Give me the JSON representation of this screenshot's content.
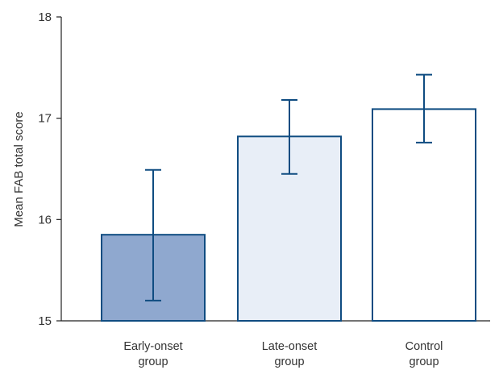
{
  "chart_data": {
    "type": "bar",
    "ylabel": "Mean FAB total score",
    "ylim": [
      15,
      18
    ],
    "yticks": [
      15,
      16,
      17,
      18
    ],
    "grid": false,
    "categories": [
      {
        "label_lines": [
          "Early-onset",
          "group"
        ],
        "value": 15.85,
        "err_low": 15.2,
        "err_high": 16.49,
        "fill": "#8fa8cf"
      },
      {
        "label_lines": [
          "Late-onset",
          "group"
        ],
        "value": 16.82,
        "err_low": 16.45,
        "err_high": 17.18,
        "fill": "#e8eef7"
      },
      {
        "label_lines": [
          "Control",
          "group"
        ],
        "value": 17.09,
        "err_low": 16.76,
        "err_high": 17.43,
        "fill": "#ffffff"
      }
    ],
    "colors": {
      "bar_stroke": "#0f4c81",
      "error_bar": "#0f4c81",
      "axis": "#222222",
      "text": "#333333"
    }
  }
}
